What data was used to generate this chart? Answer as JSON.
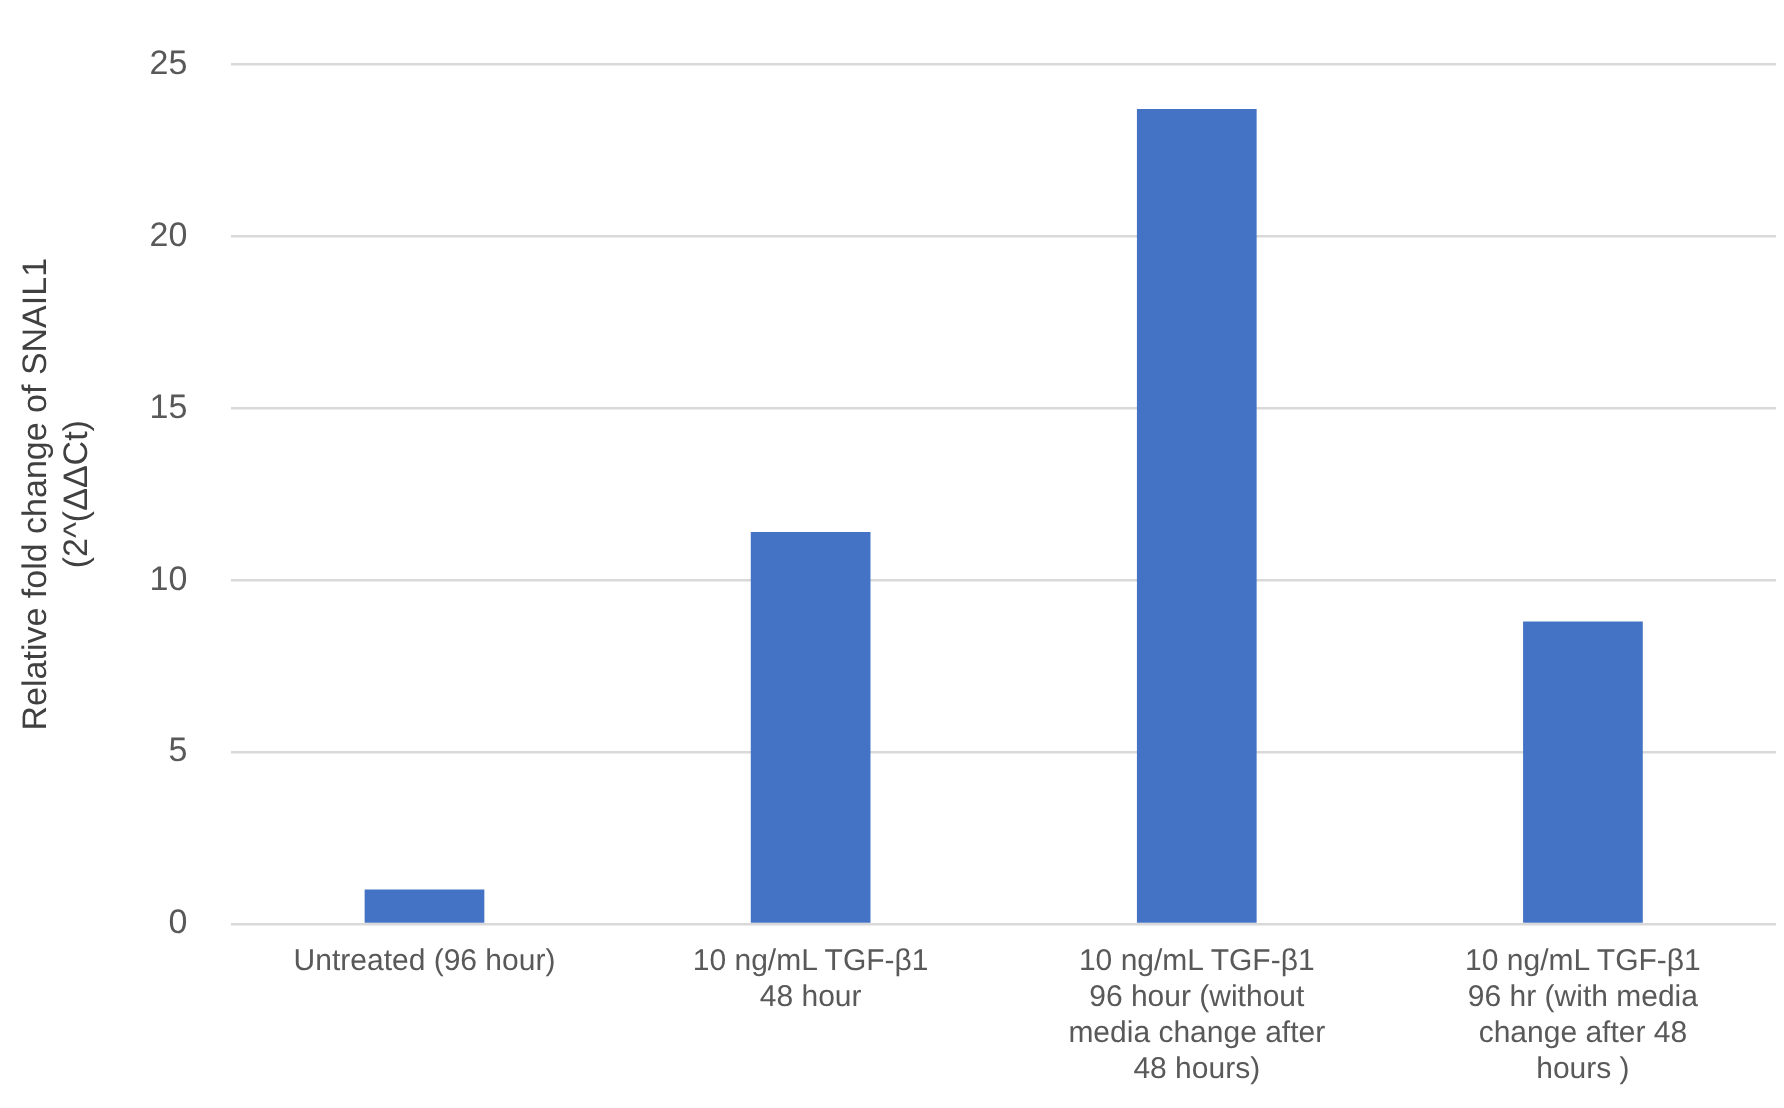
{
  "chart_data": {
    "type": "bar",
    "ylabel": "Relative fold change of SNAIL1\n(2^(ΔΔCt)",
    "categories": [
      "Untreated (96 hour)",
      "10 ng/mL TGF-β1 48 hour",
      "10 ng/mL TGF-β1 96 hour (without media change after 48 hours)",
      "10 ng/mL TGF-β1 96 hr (with media change after 48 hours )"
    ],
    "values": [
      1.0,
      11.4,
      23.7,
      8.8
    ],
    "color": "#4472c4",
    "ylim": [
      0,
      25
    ],
    "yticks": [
      0,
      5,
      10,
      15,
      20,
      25
    ],
    "grid": "y",
    "legend": false
  }
}
